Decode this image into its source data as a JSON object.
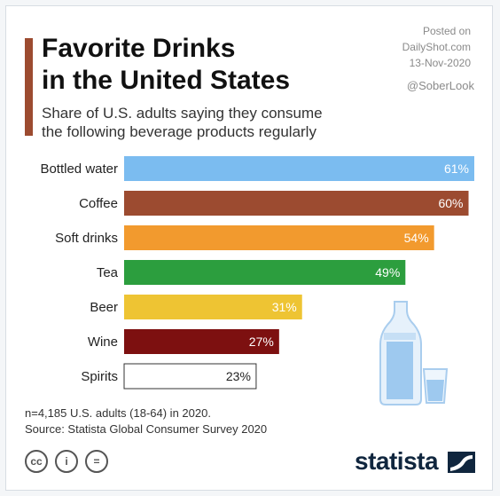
{
  "header": {
    "title_line1": "Favorite Drinks",
    "title_line2": "in the United States",
    "subtitle_line1": "Share of U.S. adults saying they consume",
    "subtitle_line2": "the following beverage products regularly",
    "posted_on": "Posted on",
    "posted_site": "DailyShot.com",
    "posted_date": "13-Nov-2020",
    "handle": "@SoberLook"
  },
  "chart_data": {
    "type": "bar",
    "orientation": "horizontal",
    "categories": [
      "Bottled water",
      "Coffee",
      "Soft drinks",
      "Tea",
      "Beer",
      "Wine",
      "Spirits"
    ],
    "values": [
      61,
      60,
      54,
      49,
      31,
      27,
      23
    ],
    "value_labels": [
      "61%",
      "60%",
      "54%",
      "49%",
      "31%",
      "27%",
      "23%"
    ],
    "unit": "%",
    "colors": [
      "#7bbcf0",
      "#9c4b30",
      "#f29a2e",
      "#2c9e3e",
      "#eec433",
      "#7d1010",
      "#ffffff"
    ],
    "label_colors": [
      "#ffffff",
      "#ffffff",
      "#ffffff",
      "#ffffff",
      "#ffffff",
      "#ffffff",
      "#222222"
    ],
    "xlim": [
      0,
      61
    ],
    "grid": false,
    "legend": "none"
  },
  "footer": {
    "note": "n=4,185 U.S. adults (18-64) in 2020.",
    "source": "Source: Statista Global Consumer Survey 2020",
    "license_icons": [
      "creative-commons-icon",
      "attribution-icon",
      "no-derivatives-icon"
    ],
    "license_glyphs": [
      "cc",
      "i",
      "="
    ],
    "brand": "statista"
  }
}
